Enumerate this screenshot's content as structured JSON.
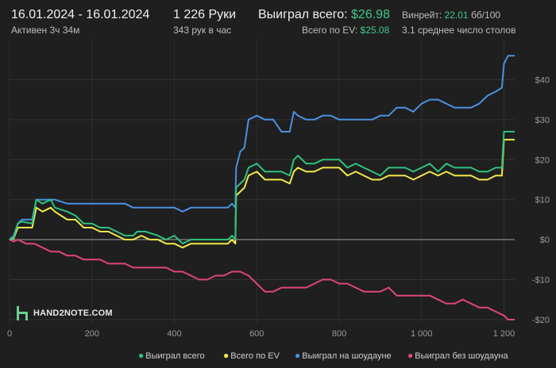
{
  "header": {
    "date_range": "16.01.2024 - 16.01.2024",
    "active_time": "Активен 3ч 34м",
    "hands": "1 226 Руки",
    "hands_per_hour": "343 рук в час",
    "won_total_label": "Выиграл всего:",
    "won_total_value": "$26.98",
    "ev_label": "Всего по EV:",
    "ev_value": "$25.08",
    "winrate_label": "Винрейт:",
    "winrate_value": "22.01",
    "winrate_unit": "бб/100",
    "avg_tables": "3.1 среднее число столов"
  },
  "logo": {
    "text": "HAND2NOTE.COM"
  },
  "legend": {
    "won_total": "Выиграл всего",
    "ev_total": "Всего по EV",
    "showdown": "Выиграл на шоудауне",
    "non_showdown": "Выиграл без шоудауна"
  },
  "colors": {
    "won_total": "#2ec27e",
    "ev_total": "#f2e94e",
    "showdown": "#4a90e2",
    "non_showdown": "#e0457b",
    "accent_green": "#3ec98a"
  },
  "chart_data": {
    "type": "line",
    "xlim": [
      0,
      1226
    ],
    "ylim": [
      -21,
      50
    ],
    "x_ticks": [
      0,
      200,
      400,
      600,
      800,
      1000,
      1200
    ],
    "x_tick_labels": [
      "0",
      "200",
      "400",
      "600",
      "800",
      "1 000",
      "1 200"
    ],
    "y_ticks": [
      40,
      30,
      20,
      10,
      0,
      -10,
      -20
    ],
    "y_tick_labels": [
      "$40",
      "$30",
      "$20",
      "$10",
      "$0",
      "-$10",
      "-$20"
    ],
    "grid": true,
    "legend_position": "bottom",
    "series": [
      {
        "name": "Выиграл всего",
        "color": "#2ec27e",
        "points": [
          [
            0,
            0
          ],
          [
            10,
            0.5
          ],
          [
            20,
            4
          ],
          [
            30,
            4.5
          ],
          [
            55,
            4
          ],
          [
            65,
            10
          ],
          [
            80,
            9
          ],
          [
            100,
            10
          ],
          [
            110,
            8
          ],
          [
            140,
            7
          ],
          [
            160,
            6
          ],
          [
            180,
            4
          ],
          [
            200,
            4
          ],
          [
            220,
            3
          ],
          [
            240,
            3
          ],
          [
            260,
            2
          ],
          [
            280,
            1
          ],
          [
            300,
            1
          ],
          [
            310,
            2
          ],
          [
            330,
            2
          ],
          [
            360,
            1
          ],
          [
            380,
            0
          ],
          [
            400,
            1
          ],
          [
            420,
            -1
          ],
          [
            440,
            0
          ],
          [
            460,
            0
          ],
          [
            480,
            0
          ],
          [
            500,
            0
          ],
          [
            520,
            0
          ],
          [
            530,
            0
          ],
          [
            540,
            1
          ],
          [
            548,
            0
          ],
          [
            550,
            13
          ],
          [
            560,
            14
          ],
          [
            570,
            15
          ],
          [
            580,
            18
          ],
          [
            600,
            19
          ],
          [
            620,
            17
          ],
          [
            640,
            17
          ],
          [
            660,
            17
          ],
          [
            680,
            16
          ],
          [
            690,
            20
          ],
          [
            700,
            21
          ],
          [
            720,
            19
          ],
          [
            740,
            19
          ],
          [
            760,
            20
          ],
          [
            780,
            20
          ],
          [
            800,
            20
          ],
          [
            820,
            18
          ],
          [
            840,
            19
          ],
          [
            860,
            18
          ],
          [
            880,
            17
          ],
          [
            900,
            16
          ],
          [
            920,
            18
          ],
          [
            940,
            18
          ],
          [
            960,
            18
          ],
          [
            980,
            17
          ],
          [
            1000,
            18
          ],
          [
            1020,
            19
          ],
          [
            1040,
            17
          ],
          [
            1060,
            19
          ],
          [
            1080,
            18
          ],
          [
            1100,
            18
          ],
          [
            1120,
            18
          ],
          [
            1140,
            17
          ],
          [
            1160,
            17
          ],
          [
            1180,
            18
          ],
          [
            1195,
            18
          ],
          [
            1200,
            27
          ],
          [
            1210,
            27
          ],
          [
            1226,
            27
          ]
        ]
      },
      {
        "name": "Всего по EV",
        "color": "#f2e94e",
        "points": [
          [
            0,
            0
          ],
          [
            10,
            0.3
          ],
          [
            20,
            3
          ],
          [
            30,
            3
          ],
          [
            55,
            3
          ],
          [
            65,
            8
          ],
          [
            80,
            7
          ],
          [
            100,
            8
          ],
          [
            110,
            7
          ],
          [
            140,
            5
          ],
          [
            160,
            5
          ],
          [
            180,
            3
          ],
          [
            200,
            3
          ],
          [
            220,
            2
          ],
          [
            240,
            2
          ],
          [
            260,
            1
          ],
          [
            280,
            0
          ],
          [
            300,
            0
          ],
          [
            320,
            1
          ],
          [
            340,
            0
          ],
          [
            360,
            0
          ],
          [
            380,
            -1
          ],
          [
            400,
            -1
          ],
          [
            420,
            -2
          ],
          [
            440,
            -1
          ],
          [
            460,
            -1
          ],
          [
            480,
            -1
          ],
          [
            500,
            -1
          ],
          [
            520,
            -1
          ],
          [
            530,
            -1
          ],
          [
            540,
            0
          ],
          [
            548,
            -1
          ],
          [
            550,
            11
          ],
          [
            560,
            12
          ],
          [
            570,
            13
          ],
          [
            580,
            16
          ],
          [
            600,
            17
          ],
          [
            620,
            15
          ],
          [
            640,
            15
          ],
          [
            660,
            15
          ],
          [
            680,
            14
          ],
          [
            690,
            17
          ],
          [
            700,
            18
          ],
          [
            720,
            17
          ],
          [
            740,
            17
          ],
          [
            760,
            18
          ],
          [
            780,
            18
          ],
          [
            800,
            18
          ],
          [
            820,
            16
          ],
          [
            840,
            17
          ],
          [
            860,
            16
          ],
          [
            880,
            15
          ],
          [
            900,
            15
          ],
          [
            920,
            16
          ],
          [
            940,
            16
          ],
          [
            960,
            16
          ],
          [
            980,
            15
          ],
          [
            1000,
            16
          ],
          [
            1020,
            17
          ],
          [
            1040,
            16
          ],
          [
            1060,
            17
          ],
          [
            1080,
            16
          ],
          [
            1100,
            16
          ],
          [
            1120,
            16
          ],
          [
            1140,
            15
          ],
          [
            1160,
            15
          ],
          [
            1180,
            16
          ],
          [
            1195,
            16
          ],
          [
            1200,
            25
          ],
          [
            1210,
            25
          ],
          [
            1226,
            25
          ]
        ]
      },
      {
        "name": "Выиграл на шоудауне",
        "color": "#4a90e2",
        "points": [
          [
            0,
            0
          ],
          [
            10,
            1
          ],
          [
            20,
            4
          ],
          [
            30,
            5
          ],
          [
            55,
            5
          ],
          [
            65,
            10
          ],
          [
            100,
            10
          ],
          [
            110,
            10
          ],
          [
            140,
            9
          ],
          [
            160,
            9
          ],
          [
            180,
            9
          ],
          [
            200,
            9
          ],
          [
            220,
            9
          ],
          [
            240,
            9
          ],
          [
            260,
            9
          ],
          [
            280,
            9
          ],
          [
            300,
            8
          ],
          [
            320,
            8
          ],
          [
            340,
            8
          ],
          [
            360,
            8
          ],
          [
            380,
            8
          ],
          [
            400,
            8
          ],
          [
            420,
            7
          ],
          [
            440,
            8
          ],
          [
            460,
            8
          ],
          [
            480,
            8
          ],
          [
            500,
            8
          ],
          [
            520,
            8
          ],
          [
            530,
            8
          ],
          [
            540,
            9
          ],
          [
            548,
            8
          ],
          [
            550,
            18
          ],
          [
            560,
            22
          ],
          [
            570,
            23
          ],
          [
            580,
            30
          ],
          [
            600,
            31
          ],
          [
            620,
            30
          ],
          [
            640,
            30
          ],
          [
            660,
            27
          ],
          [
            680,
            27
          ],
          [
            690,
            32
          ],
          [
            700,
            31
          ],
          [
            720,
            30
          ],
          [
            740,
            30
          ],
          [
            760,
            31
          ],
          [
            780,
            31
          ],
          [
            800,
            30
          ],
          [
            820,
            30
          ],
          [
            840,
            30
          ],
          [
            860,
            30
          ],
          [
            880,
            30
          ],
          [
            900,
            31
          ],
          [
            920,
            31
          ],
          [
            940,
            33
          ],
          [
            960,
            33
          ],
          [
            980,
            32
          ],
          [
            1000,
            34
          ],
          [
            1020,
            35
          ],
          [
            1040,
            35
          ],
          [
            1060,
            34
          ],
          [
            1080,
            33
          ],
          [
            1100,
            33
          ],
          [
            1120,
            33
          ],
          [
            1140,
            34
          ],
          [
            1160,
            36
          ],
          [
            1180,
            37
          ],
          [
            1195,
            38
          ],
          [
            1200,
            44
          ],
          [
            1210,
            46
          ],
          [
            1226,
            46
          ]
        ]
      },
      {
        "name": "Выиграл без шоудауна",
        "color": "#e0457b",
        "points": [
          [
            0,
            0
          ],
          [
            10,
            -0.5
          ],
          [
            20,
            0
          ],
          [
            40,
            -1
          ],
          [
            60,
            -1
          ],
          [
            80,
            -2
          ],
          [
            100,
            -3
          ],
          [
            120,
            -3
          ],
          [
            140,
            -4
          ],
          [
            160,
            -4
          ],
          [
            180,
            -5
          ],
          [
            200,
            -5
          ],
          [
            220,
            -5
          ],
          [
            240,
            -6
          ],
          [
            260,
            -6
          ],
          [
            280,
            -6
          ],
          [
            300,
            -7
          ],
          [
            320,
            -7
          ],
          [
            340,
            -7
          ],
          [
            360,
            -7
          ],
          [
            380,
            -7
          ],
          [
            400,
            -8
          ],
          [
            420,
            -8
          ],
          [
            440,
            -9
          ],
          [
            460,
            -10
          ],
          [
            480,
            -10
          ],
          [
            500,
            -9
          ],
          [
            520,
            -9
          ],
          [
            540,
            -8
          ],
          [
            560,
            -8
          ],
          [
            580,
            -9
          ],
          [
            600,
            -11
          ],
          [
            620,
            -13
          ],
          [
            640,
            -13
          ],
          [
            660,
            -12
          ],
          [
            680,
            -12
          ],
          [
            700,
            -12
          ],
          [
            720,
            -12
          ],
          [
            740,
            -11
          ],
          [
            760,
            -10
          ],
          [
            780,
            -10
          ],
          [
            800,
            -11
          ],
          [
            820,
            -11
          ],
          [
            840,
            -12
          ],
          [
            860,
            -13
          ],
          [
            880,
            -13
          ],
          [
            900,
            -13
          ],
          [
            920,
            -12
          ],
          [
            940,
            -14
          ],
          [
            960,
            -14
          ],
          [
            980,
            -14
          ],
          [
            1000,
            -14
          ],
          [
            1020,
            -14
          ],
          [
            1040,
            -15
          ],
          [
            1060,
            -16
          ],
          [
            1080,
            -16
          ],
          [
            1100,
            -15
          ],
          [
            1120,
            -16
          ],
          [
            1140,
            -17
          ],
          [
            1160,
            -17
          ],
          [
            1180,
            -18
          ],
          [
            1200,
            -19
          ],
          [
            1210,
            -20
          ],
          [
            1226,
            -20
          ]
        ]
      }
    ]
  }
}
